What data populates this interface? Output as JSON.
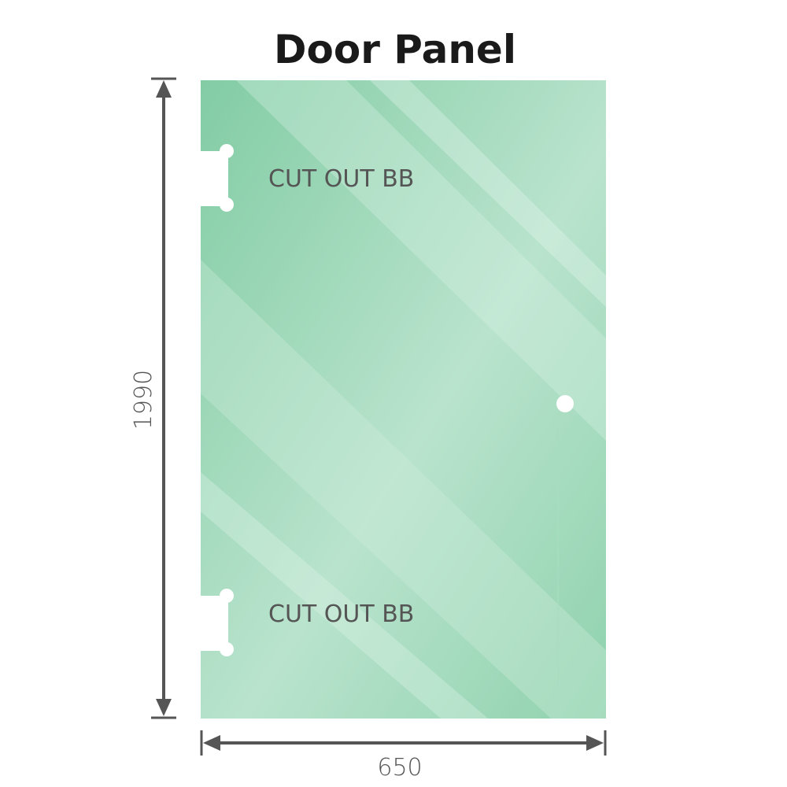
{
  "title": "Door Panel",
  "cutouts": [
    {
      "label": "CUT OUT BB"
    },
    {
      "label": "CUT OUT BB"
    }
  ],
  "dimensions": {
    "height": "1990",
    "width": "650"
  },
  "colors": {
    "glass": "#8fd0ad",
    "glass_light": "#bfe6d2",
    "dimension_line": "#555555",
    "title": "#1a1a1a"
  }
}
